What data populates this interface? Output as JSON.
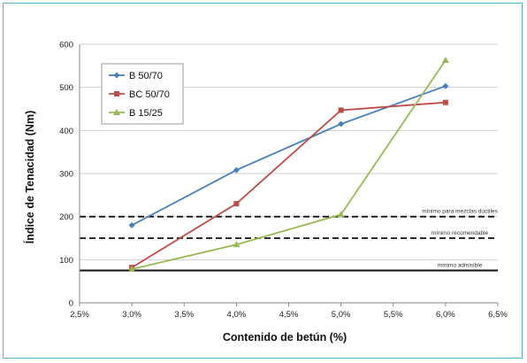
{
  "chart_data": {
    "type": "line",
    "xlabel": "Contenido de betún (%)",
    "ylabel": "Índice de Tenacidad (Nm)",
    "x_ticks": [
      "2,5%",
      "3,0%",
      "3,5%",
      "4,0%",
      "4,5%",
      "5,0%",
      "5,5%",
      "6,0%",
      "6,5%"
    ],
    "xlim": [
      2.5,
      6.5
    ],
    "ylim": [
      0,
      600
    ],
    "y_ticks": [
      "0",
      "100",
      "200",
      "300",
      "400",
      "500",
      "600"
    ],
    "grid": "horizontal",
    "legend_position": "top-left",
    "series": [
      {
        "name": "B 50/70",
        "color": "#4a7ebb",
        "marker": "diamond",
        "x": [
          3.0,
          4.0,
          5.0,
          6.0
        ],
        "y": [
          180,
          308,
          415,
          503
        ]
      },
      {
        "name": "BC 50/70",
        "color": "#be4b48",
        "marker": "square",
        "x": [
          3.0,
          4.0,
          5.0,
          6.0
        ],
        "y": [
          82,
          230,
          447,
          465
        ]
      },
      {
        "name": "B 15/25",
        "color": "#98b954",
        "marker": "triangle",
        "x": [
          3.0,
          4.0,
          5.0,
          6.0
        ],
        "y": [
          78,
          135,
          205,
          563
        ]
      }
    ],
    "reference_lines": [
      {
        "y": 200,
        "style": "dashed",
        "label": "mínimo para mezclas dúctiles"
      },
      {
        "y": 150,
        "style": "dashed",
        "label": "mínimo recomendable"
      },
      {
        "y": 75,
        "style": "solid",
        "label": "mínimo admisible"
      }
    ]
  }
}
